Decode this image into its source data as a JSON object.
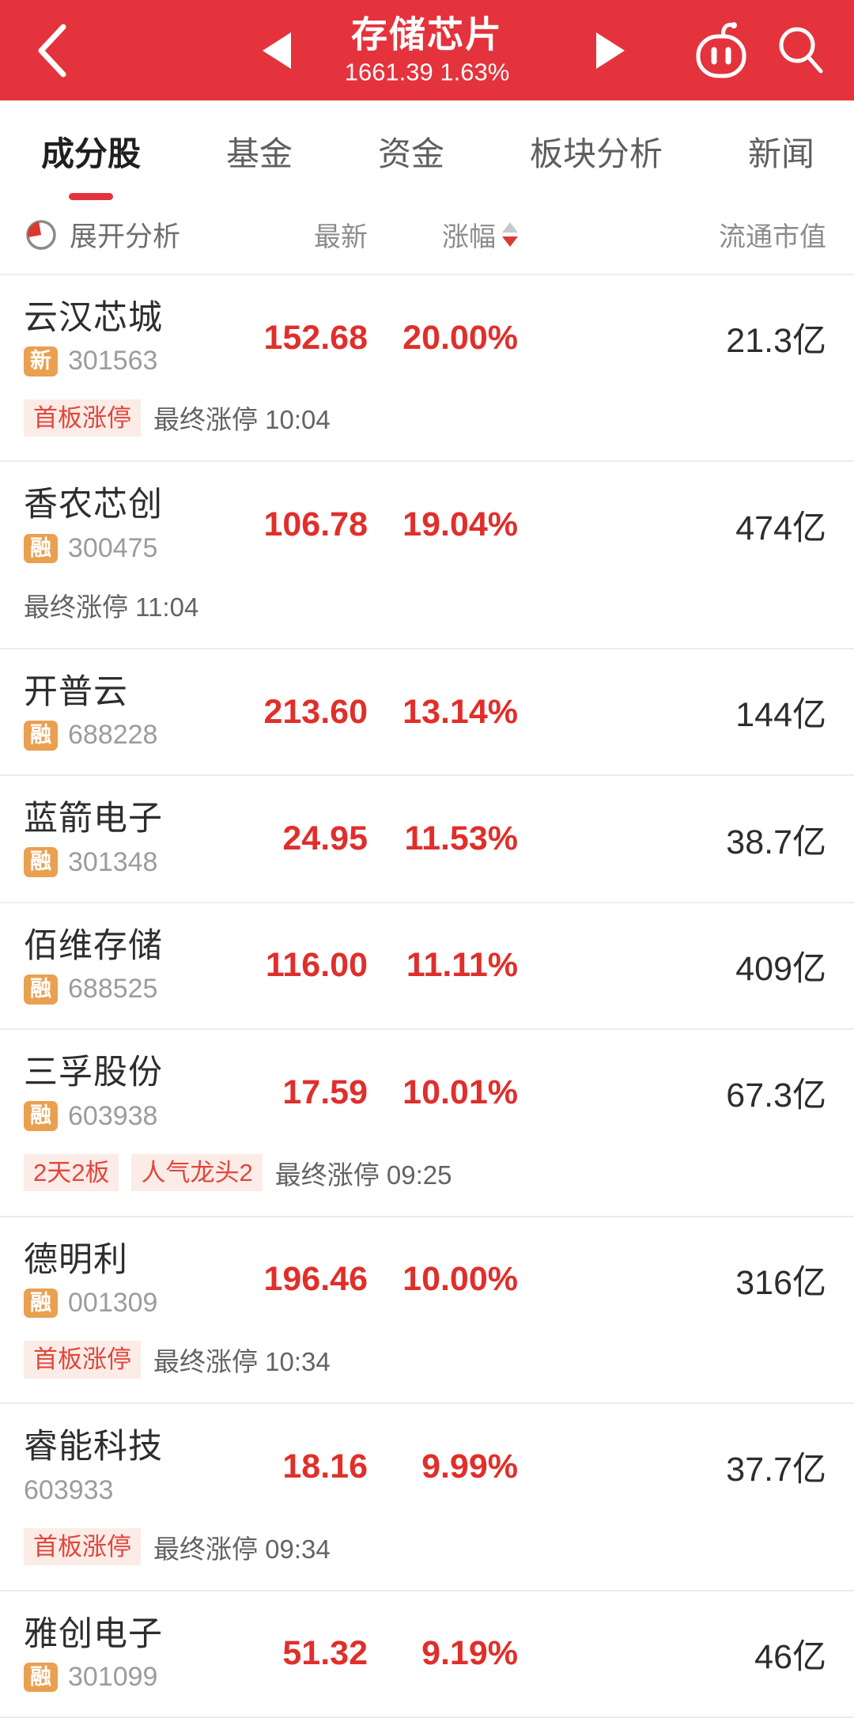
{
  "header": {
    "title": "存储芯片",
    "subtitle": "1661.39 1.63%"
  },
  "tabs": [
    {
      "label": "成分股",
      "active": true
    },
    {
      "label": "基金",
      "active": false
    },
    {
      "label": "资金",
      "active": false
    },
    {
      "label": "板块分析",
      "active": false
    },
    {
      "label": "新闻",
      "active": false
    }
  ],
  "toolbar": {
    "expand_label": "展开分析"
  },
  "columns": {
    "price": "最新",
    "change": "涨幅",
    "cap": "流通市值"
  },
  "stocks": [
    {
      "name": "云汉芯城",
      "badge": "新",
      "code": "301563",
      "price": "152.68",
      "change": "20.00%",
      "cap": "21.3亿",
      "tags": [
        "首板涨停"
      ],
      "note": "最终涨停 10:04"
    },
    {
      "name": "香农芯创",
      "badge": "融",
      "code": "300475",
      "price": "106.78",
      "change": "19.04%",
      "cap": "474亿",
      "tags": [],
      "note": "最终涨停 11:04"
    },
    {
      "name": "开普云",
      "badge": "融",
      "code": "688228",
      "price": "213.60",
      "change": "13.14%",
      "cap": "144亿",
      "tags": [],
      "note": null
    },
    {
      "name": "蓝箭电子",
      "badge": "融",
      "code": "301348",
      "price": "24.95",
      "change": "11.53%",
      "cap": "38.7亿",
      "tags": [],
      "note": null
    },
    {
      "name": "佰维存储",
      "badge": "融",
      "code": "688525",
      "price": "116.00",
      "change": "11.11%",
      "cap": "409亿",
      "tags": [],
      "note": null
    },
    {
      "name": "三孚股份",
      "badge": "融",
      "code": "603938",
      "price": "17.59",
      "change": "10.01%",
      "cap": "67.3亿",
      "tags": [
        "2天2板",
        "人气龙头2"
      ],
      "note": "最终涨停 09:25"
    },
    {
      "name": "德明利",
      "badge": "融",
      "code": "001309",
      "price": "196.46",
      "change": "10.00%",
      "cap": "316亿",
      "tags": [
        "首板涨停"
      ],
      "note": "最终涨停 10:34"
    },
    {
      "name": "睿能科技",
      "badge": null,
      "code": "603933",
      "price": "18.16",
      "change": "9.99%",
      "cap": "37.7亿",
      "tags": [
        "首板涨停"
      ],
      "note": "最终涨停 09:34"
    },
    {
      "name": "雅创电子",
      "badge": "融",
      "code": "301099",
      "price": "51.32",
      "change": "9.19%",
      "cap": "46亿",
      "tags": [],
      "note": null
    }
  ],
  "colors": {
    "header_bg": "#e4333c",
    "up_red": "#e02f2b",
    "badge_orange": "#e9a050",
    "tag_bg": "#fbece8",
    "tag_red": "#e2463b"
  }
}
